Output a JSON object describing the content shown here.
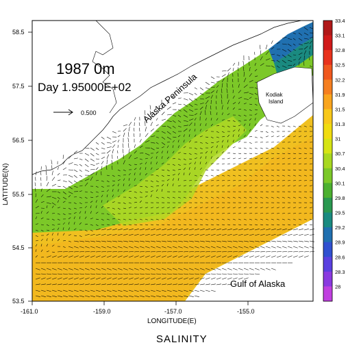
{
  "title_year_depth": "1987 0m",
  "title_day": "Day 1.95000E+02",
  "footer_label": "SALINITY",
  "axes": {
    "xlabel": "LONGITUDE(E)",
    "ylabel": "LATITUDE(N)",
    "x_ticks": [
      "-161.0",
      "-159.0",
      "-157.0",
      "-155.0"
    ],
    "y_ticks": [
      "58.5",
      "57.5",
      "56.5",
      "55.5",
      "54.5",
      "53.5"
    ]
  },
  "places": {
    "peninsula": "Alaska Peninsula",
    "kodiak_line1": "Kodiak",
    "kodiak_line2": "Island",
    "gulf": "Gulf of Alaska"
  },
  "vector_scale": {
    "label": "0.500"
  },
  "colorbar": {
    "labels": [
      "33.4",
      "33.1",
      "32.8",
      "32.5",
      "32.2",
      "31.9",
      "31.5",
      "31.3",
      "31",
      "30.7",
      "30.4",
      "30.1",
      "29.8",
      "29.5",
      "29.2",
      "28.9",
      "28.6",
      "28.3",
      "28"
    ],
    "colors": [
      "#b01818",
      "#d01a1a",
      "#e8321c",
      "#f0581e",
      "#f57f20",
      "#f9a51e",
      "#f8c81a",
      "#f0dc10",
      "#d6e414",
      "#a8d820",
      "#7cc828",
      "#4cb030",
      "#2a9850",
      "#1a8a80",
      "#2070b0",
      "#3050d0",
      "#5a40e0",
      "#8a3ae0",
      "#c040e0"
    ]
  },
  "colors": {
    "land": "#ffffff",
    "coast": "#000000",
    "shelf": "#7cc828",
    "offshore": "#f0c020",
    "deep": "#f8a41c"
  }
}
